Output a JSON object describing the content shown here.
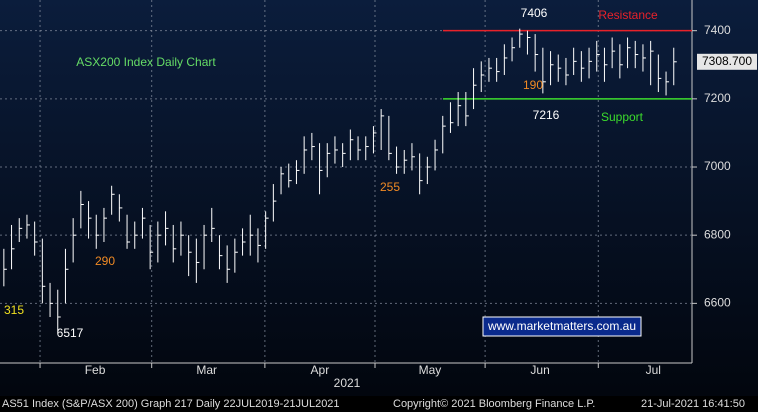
{
  "chart_data": {
    "type": "hlc",
    "bar_color": "#ffffff",
    "ylim": [
      6425,
      7490
    ],
    "yticks": [
      6600,
      6800,
      7000,
      7200,
      7400
    ],
    "grid": true,
    "xticks": [
      {
        "value": 4.7,
        "label": "Feb"
      },
      {
        "value": 19.2,
        "label": "Mar"
      },
      {
        "value": 33.9,
        "label": "Apr"
      },
      {
        "value": 48.2,
        "label": "May"
      },
      {
        "value": 62.5,
        "label": "Jun"
      },
      {
        "value": 77.2,
        "label": "Jul"
      }
    ],
    "x_year": "2021",
    "high": [
      6760,
      6830,
      6850,
      6860,
      6840,
      6790,
      6660,
      6640,
      6760,
      6850,
      6930,
      6900,
      6860,
      6880,
      6945,
      6920,
      6860,
      6840,
      6880,
      6830,
      6840,
      6870,
      6830,
      6840,
      6800,
      6790,
      6830,
      6880,
      6800,
      6770,
      6790,
      6820,
      6860,
      6820,
      6870,
      6950,
      7000,
      7010,
      7020,
      7090,
      7100,
      7070,
      7070,
      7090,
      7070,
      7110,
      7090,
      7090,
      7120,
      7170,
      7150,
      7060,
      7050,
      7070,
      7040,
      7030,
      7080,
      7150,
      7190,
      7220,
      7220,
      7290,
      7310,
      7320,
      7320,
      7360,
      7380,
      7406,
      7400,
      7390,
      7350,
      7340,
      7330,
      7320,
      7350,
      7340,
      7350,
      7370,
      7350,
      7380,
      7360,
      7380,
      7370,
      7360,
      7370,
      7330,
      7280,
      7350
    ],
    "low": [
      6650,
      6700,
      6780,
      6790,
      6740,
      6600,
      6560,
      6517,
      6600,
      6720,
      6820,
      6790,
      6760,
      6780,
      6860,
      6840,
      6760,
      6760,
      6790,
      6700,
      6720,
      6770,
      6720,
      6740,
      6680,
      6660,
      6700,
      6780,
      6700,
      6660,
      6690,
      6740,
      6740,
      6720,
      6760,
      6840,
      6920,
      6940,
      6950,
      6980,
      7020,
      6920,
      6970,
      7010,
      7000,
      7020,
      7020,
      7020,
      7040,
      7050,
      7020,
      6980,
      6980,
      6990,
      6920,
      6950,
      6990,
      7040,
      7100,
      7120,
      7120,
      7170,
      7220,
      7250,
      7250,
      7270,
      7310,
      7350,
      7330,
      7280,
      7216,
      7240,
      7250,
      7240,
      7270,
      7250,
      7260,
      7280,
      7250,
      7290,
      7260,
      7290,
      7290,
      7280,
      7240,
      7220,
      7210,
      7240
    ],
    "close": [
      6700,
      6760,
      6820,
      6830,
      6780,
      6650,
      6600,
      6560,
      6700,
      6800,
      6890,
      6850,
      6800,
      6850,
      6920,
      6880,
      6780,
      6800,
      6850,
      6750,
      6800,
      6820,
      6760,
      6800,
      6750,
      6720,
      6800,
      6820,
      6740,
      6700,
      6750,
      6780,
      6800,
      6770,
      6850,
      6900,
      6980,
      6960,
      6990,
      7050,
      7060,
      6990,
      7040,
      7050,
      7040,
      7080,
      7050,
      7060,
      7100,
      7150,
      7040,
      7000,
      7020,
      7030,
      6960,
      7000,
      7050,
      7120,
      7130,
      7180,
      7150,
      7240,
      7270,
      7290,
      7280,
      7320,
      7350,
      7390,
      7380,
      7330,
      7250,
      7300,
      7290,
      7270,
      7310,
      7290,
      7310,
      7330,
      7300,
      7340,
      7300,
      7350,
      7330,
      7320,
      7340,
      7260,
      7250,
      7308.7
    ],
    "last_price": {
      "value": 7308.7,
      "label": "7308.700"
    },
    "lines": [
      {
        "name": "Resistance",
        "value": 7400,
        "color": "#e8222a"
      },
      {
        "name": "Support",
        "value": 7200,
        "color": "#3cdc2c"
      }
    ],
    "annotations": [
      {
        "text": "ASX200 Index Daily Chart",
        "color": "#66dd66"
      },
      {
        "text": "7406",
        "color": "#ffffff"
      },
      {
        "text": "190",
        "color": "#f08a24"
      },
      {
        "text": "7216",
        "color": "#ffffff"
      },
      {
        "text": "255",
        "color": "#f08a24"
      },
      {
        "text": "290",
        "color": "#f08a24"
      },
      {
        "text": "315",
        "color": "#f0e020"
      },
      {
        "text": "6517",
        "color": "#ffffff"
      },
      {
        "text": "www.marketmatters.com.au",
        "color": "#ffffff"
      }
    ],
    "footer": [
      "AS51 Index (S&P/ASX 200) Graph 217  Daily 22JUL2019-21JUL2021",
      "Copyright© 2021 Bloomberg Finance L.P.",
      "21-Jul-2021 16:41:50"
    ]
  }
}
